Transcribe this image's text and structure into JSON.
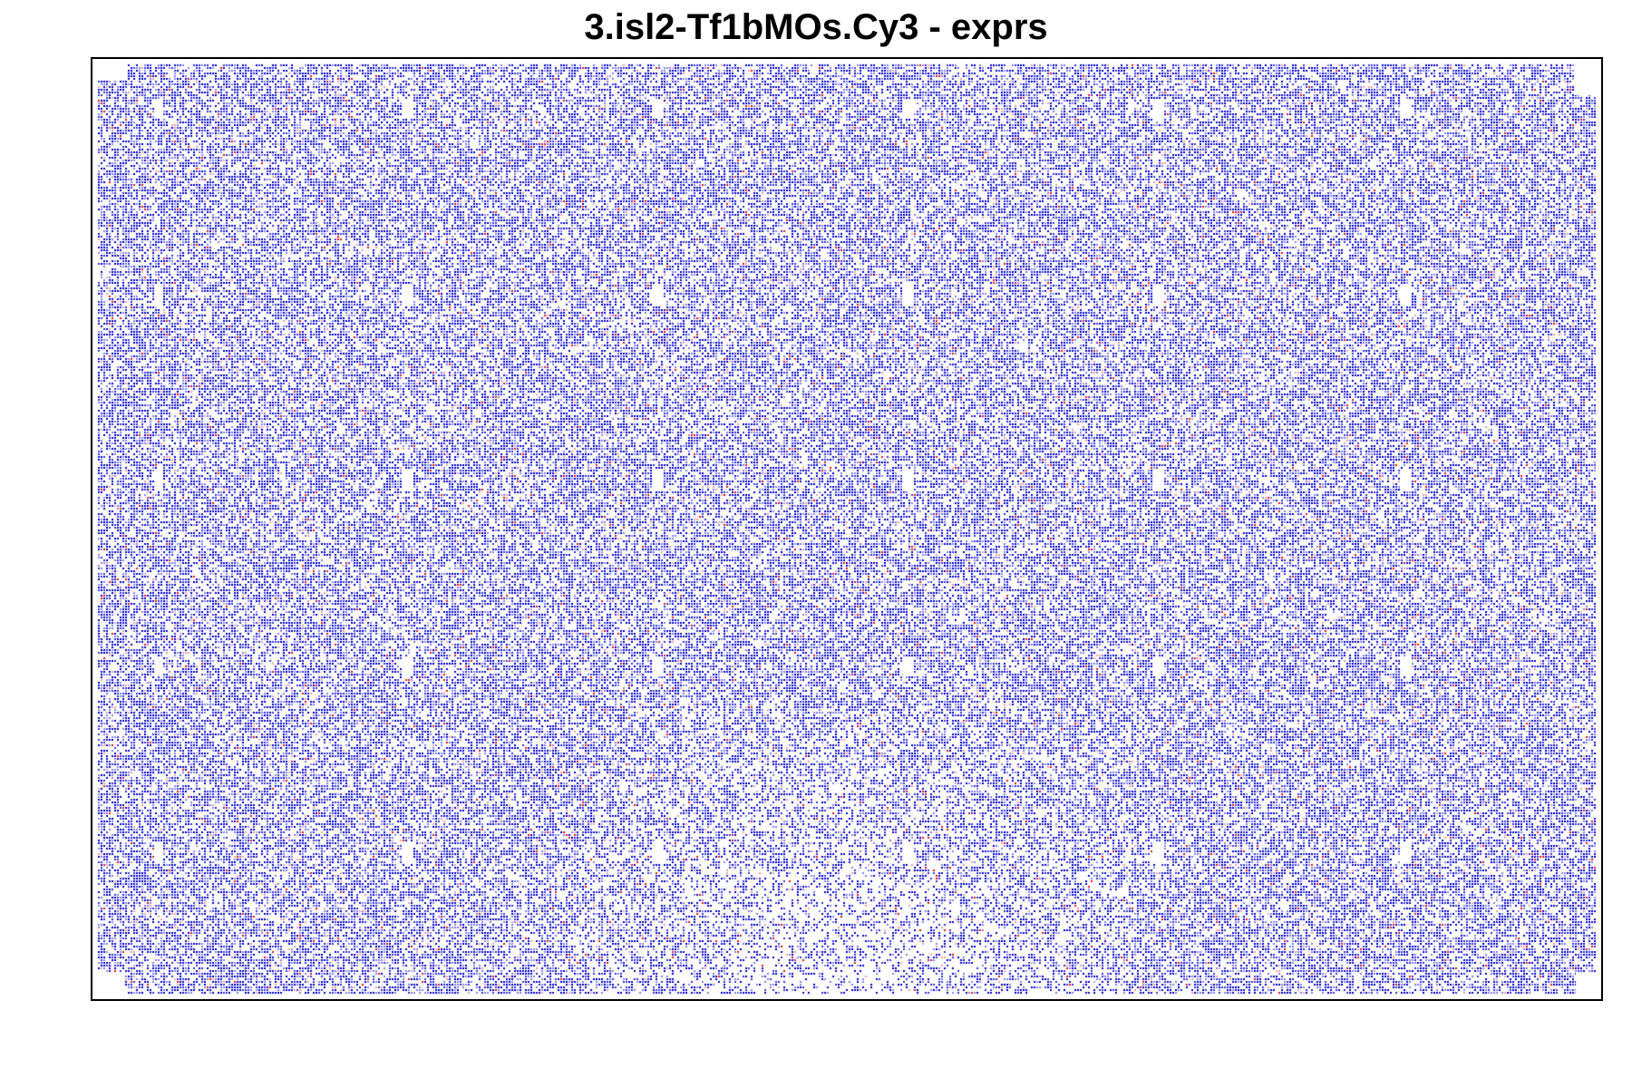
{
  "chart_data": {
    "type": "heatmap",
    "title": "3.isl2-Tf1bMOs.Cy3 - exprs",
    "xlabel": "",
    "ylabel": "",
    "axes_visible": false,
    "grid": false,
    "legend": "none",
    "color_scale": {
      "low": "#0000cc",
      "mid": "#ffffff",
      "high": "#ff0000"
    },
    "pattern": {
      "description_free": true,
      "cell_density": 0.62,
      "blue_fraction": 0.93,
      "red_fraction": 0.015,
      "grid_blocks_x": 6,
      "grid_blocks_y": 5
    }
  }
}
